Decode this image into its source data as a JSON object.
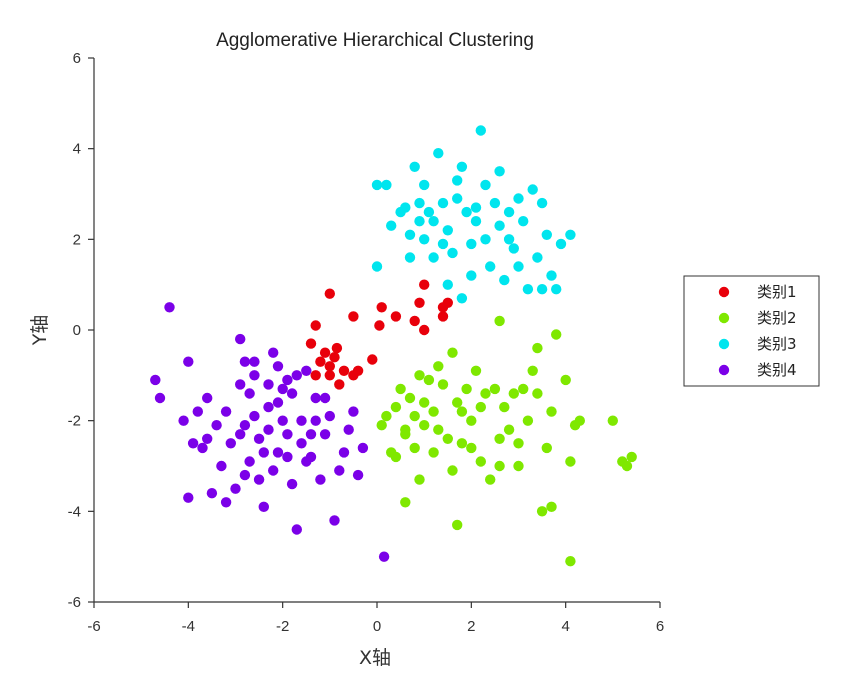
{
  "chart_data": {
    "type": "scatter",
    "title": "Agglomerative Hierarchical Clustering",
    "xlabel": "X轴",
    "ylabel": "Y轴",
    "xlim": [
      -6,
      6
    ],
    "ylim": [
      -6,
      6
    ],
    "xticks": [
      -6,
      -4,
      -2,
      0,
      2,
      4,
      6
    ],
    "yticks": [
      -6,
      -4,
      -2,
      0,
      2,
      4,
      6
    ],
    "grid": false,
    "legend_position": "right",
    "series": [
      {
        "name": "类别1",
        "color": "#e8000b",
        "points": [
          [
            -1.3,
            0.1
          ],
          [
            -1.0,
            0.8
          ],
          [
            -0.5,
            0.3
          ],
          [
            0.1,
            0.5
          ],
          [
            0.4,
            0.3
          ],
          [
            0.8,
            0.2
          ],
          [
            1.0,
            1.0
          ],
          [
            0.9,
            0.6
          ],
          [
            1.0,
            0.0
          ],
          [
            1.4,
            0.3
          ],
          [
            1.5,
            0.6
          ],
          [
            1.4,
            0.5
          ],
          [
            0.05,
            0.1
          ],
          [
            -1.4,
            -0.3
          ],
          [
            -1.2,
            -0.7
          ],
          [
            -1.0,
            -0.8
          ],
          [
            -0.9,
            -0.6
          ],
          [
            -0.85,
            -0.4
          ],
          [
            -0.7,
            -0.9
          ],
          [
            -0.5,
            -1.0
          ],
          [
            -0.4,
            -0.9
          ],
          [
            -0.1,
            -0.65
          ],
          [
            -1.3,
            -1.0
          ],
          [
            -1.0,
            -1.0
          ],
          [
            -0.8,
            -1.2
          ],
          [
            -1.1,
            -0.5
          ]
        ]
      },
      {
        "name": "类别2",
        "color": "#7fe800",
        "points": [
          [
            0.2,
            -1.9
          ],
          [
            0.3,
            -2.7
          ],
          [
            0.4,
            -1.7
          ],
          [
            0.5,
            -1.3
          ],
          [
            0.6,
            -2.3
          ],
          [
            0.6,
            -2.2
          ],
          [
            0.7,
            -1.5
          ],
          [
            0.8,
            -1.9
          ],
          [
            0.9,
            -3.3
          ],
          [
            1.0,
            -2.1
          ],
          [
            1.1,
            -1.1
          ],
          [
            1.2,
            -2.7
          ],
          [
            1.2,
            -1.8
          ],
          [
            1.3,
            -0.8
          ],
          [
            1.4,
            -1.2
          ],
          [
            1.5,
            -2.4
          ],
          [
            1.6,
            -3.1
          ],
          [
            1.6,
            -0.5
          ],
          [
            1.7,
            -1.6
          ],
          [
            1.8,
            -2.5
          ],
          [
            1.9,
            -1.3
          ],
          [
            2.0,
            -2.0
          ],
          [
            2.1,
            -0.9
          ],
          [
            2.2,
            -2.9
          ],
          [
            2.3,
            -1.4
          ],
          [
            2.4,
            -3.3
          ],
          [
            2.5,
            -1.3
          ],
          [
            2.6,
            -2.4
          ],
          [
            2.7,
            -1.7
          ],
          [
            2.8,
            -2.2
          ],
          [
            2.9,
            -1.4
          ],
          [
            3.0,
            -2.5
          ],
          [
            3.1,
            -1.3
          ],
          [
            3.2,
            -2.0
          ],
          [
            3.3,
            -0.9
          ],
          [
            3.4,
            -1.4
          ],
          [
            3.5,
            -4.0
          ],
          [
            3.6,
            -2.6
          ],
          [
            3.7,
            -1.8
          ],
          [
            3.8,
            -0.1
          ],
          [
            4.0,
            -1.1
          ],
          [
            4.1,
            -2.9
          ],
          [
            4.2,
            -2.1
          ],
          [
            4.3,
            -2.0
          ],
          [
            5.0,
            -2.0
          ],
          [
            5.2,
            -2.9
          ],
          [
            5.3,
            -3.0
          ],
          [
            5.4,
            -2.8
          ],
          [
            4.1,
            -5.1
          ],
          [
            1.7,
            -4.3
          ],
          [
            2.6,
            0.2
          ],
          [
            0.6,
            -3.8
          ],
          [
            0.1,
            -2.1
          ],
          [
            0.8,
            -2.6
          ],
          [
            1.0,
            -1.6
          ],
          [
            1.3,
            -2.2
          ],
          [
            1.8,
            -1.8
          ],
          [
            2.0,
            -2.6
          ],
          [
            2.2,
            -1.7
          ],
          [
            2.6,
            -3.0
          ],
          [
            3.0,
            -3.0
          ],
          [
            3.4,
            -0.4
          ],
          [
            3.7,
            -3.9
          ],
          [
            0.4,
            -2.8
          ],
          [
            0.9,
            -1.0
          ]
        ]
      },
      {
        "name": "类别3",
        "color": "#00e5ee",
        "points": [
          [
            0.0,
            3.2
          ],
          [
            0.2,
            3.2
          ],
          [
            0.5,
            2.6
          ],
          [
            0.6,
            2.7
          ],
          [
            0.7,
            2.1
          ],
          [
            0.8,
            3.6
          ],
          [
            0.9,
            2.4
          ],
          [
            1.0,
            3.2
          ],
          [
            1.1,
            2.6
          ],
          [
            1.2,
            1.6
          ],
          [
            1.3,
            3.9
          ],
          [
            1.4,
            2.8
          ],
          [
            1.5,
            2.2
          ],
          [
            1.6,
            1.7
          ],
          [
            1.7,
            3.3
          ],
          [
            1.8,
            0.7
          ],
          [
            1.9,
            2.6
          ],
          [
            2.0,
            1.9
          ],
          [
            2.1,
            2.4
          ],
          [
            2.2,
            4.4
          ],
          [
            2.3,
            2.0
          ],
          [
            2.4,
            1.4
          ],
          [
            2.5,
            2.8
          ],
          [
            2.6,
            2.3
          ],
          [
            2.7,
            1.1
          ],
          [
            2.8,
            2.6
          ],
          [
            2.9,
            1.8
          ],
          [
            3.0,
            1.4
          ],
          [
            3.1,
            2.4
          ],
          [
            3.2,
            0.9
          ],
          [
            3.3,
            3.1
          ],
          [
            3.4,
            1.6
          ],
          [
            3.5,
            0.9
          ],
          [
            3.6,
            2.1
          ],
          [
            3.7,
            1.2
          ],
          [
            3.8,
            0.9
          ],
          [
            3.9,
            1.9
          ],
          [
            4.1,
            2.1
          ],
          [
            0.7,
            1.6
          ],
          [
            1.0,
            2.0
          ],
          [
            1.8,
            3.6
          ],
          [
            2.1,
            2.7
          ],
          [
            2.6,
            3.5
          ],
          [
            0.3,
            2.3
          ],
          [
            1.5,
            1.0
          ],
          [
            0.0,
            1.4
          ],
          [
            1.2,
            2.4
          ],
          [
            2.0,
            1.2
          ],
          [
            2.8,
            2.0
          ],
          [
            3.5,
            2.8
          ],
          [
            1.7,
            2.9
          ],
          [
            2.3,
            3.2
          ],
          [
            0.9,
            2.8
          ],
          [
            1.4,
            1.9
          ],
          [
            3.0,
            2.9
          ]
        ]
      },
      {
        "name": "类别4",
        "color": "#7b00e8",
        "points": [
          [
            -4.7,
            -1.1
          ],
          [
            -4.6,
            -1.5
          ],
          [
            -4.4,
            0.5
          ],
          [
            -4.0,
            -0.7
          ],
          [
            -3.9,
            -2.5
          ],
          [
            -3.8,
            -1.8
          ],
          [
            -3.7,
            -2.6
          ],
          [
            -3.6,
            -1.5
          ],
          [
            -3.5,
            -3.6
          ],
          [
            -3.4,
            -2.1
          ],
          [
            -3.3,
            -3.0
          ],
          [
            -3.2,
            -1.8
          ],
          [
            -3.1,
            -2.5
          ],
          [
            -3.0,
            -3.5
          ],
          [
            -2.9,
            -1.2
          ],
          [
            -2.9,
            -0.2
          ],
          [
            -2.8,
            -2.1
          ],
          [
            -2.7,
            -2.9
          ],
          [
            -2.6,
            -1.0
          ],
          [
            -2.5,
            -2.4
          ],
          [
            -2.4,
            -3.9
          ],
          [
            -2.3,
            -1.7
          ],
          [
            -2.2,
            -0.5
          ],
          [
            -2.1,
            -2.7
          ],
          [
            -2.0,
            -1.3
          ],
          [
            -1.9,
            -2.3
          ],
          [
            -1.8,
            -3.4
          ],
          [
            -1.7,
            -1.0
          ],
          [
            -1.6,
            -2.0
          ],
          [
            -1.5,
            -0.9
          ],
          [
            -1.4,
            -2.8
          ],
          [
            -1.3,
            -1.5
          ],
          [
            -1.2,
            -3.3
          ],
          [
            -1.1,
            -2.3
          ],
          [
            -1.0,
            -1.9
          ],
          [
            -0.9,
            -4.2
          ],
          [
            -0.8,
            -3.1
          ],
          [
            -0.7,
            -2.7
          ],
          [
            -0.6,
            -2.2
          ],
          [
            -0.5,
            -1.8
          ],
          [
            -0.4,
            -3.2
          ],
          [
            -0.3,
            -2.6
          ],
          [
            -1.7,
            -4.4
          ],
          [
            -4.0,
            -3.7
          ],
          [
            -2.6,
            -1.9
          ],
          [
            -2.3,
            -2.2
          ],
          [
            -2.0,
            -2.0
          ],
          [
            -2.4,
            -2.7
          ],
          [
            -2.1,
            -1.6
          ],
          [
            -1.9,
            -2.8
          ],
          [
            -2.7,
            -1.4
          ],
          [
            -2.2,
            -3.1
          ],
          [
            -1.8,
            -1.4
          ],
          [
            -2.5,
            -3.3
          ],
          [
            -1.6,
            -2.5
          ],
          [
            -3.2,
            -3.8
          ],
          [
            -4.1,
            -2.0
          ],
          [
            -2.8,
            -0.7
          ],
          [
            -1.5,
            -2.9
          ],
          [
            -1.3,
            -2.0
          ],
          [
            -2.9,
            -2.3
          ],
          [
            -3.6,
            -2.4
          ],
          [
            -1.1,
            -1.5
          ],
          [
            0.15,
            -5.0
          ],
          [
            -2.6,
            -0.7
          ],
          [
            -2.1,
            -0.8
          ],
          [
            -1.9,
            -1.1
          ],
          [
            -2.3,
            -1.2
          ],
          [
            -1.4,
            -2.3
          ],
          [
            -2.8,
            -3.2
          ]
        ]
      }
    ]
  }
}
